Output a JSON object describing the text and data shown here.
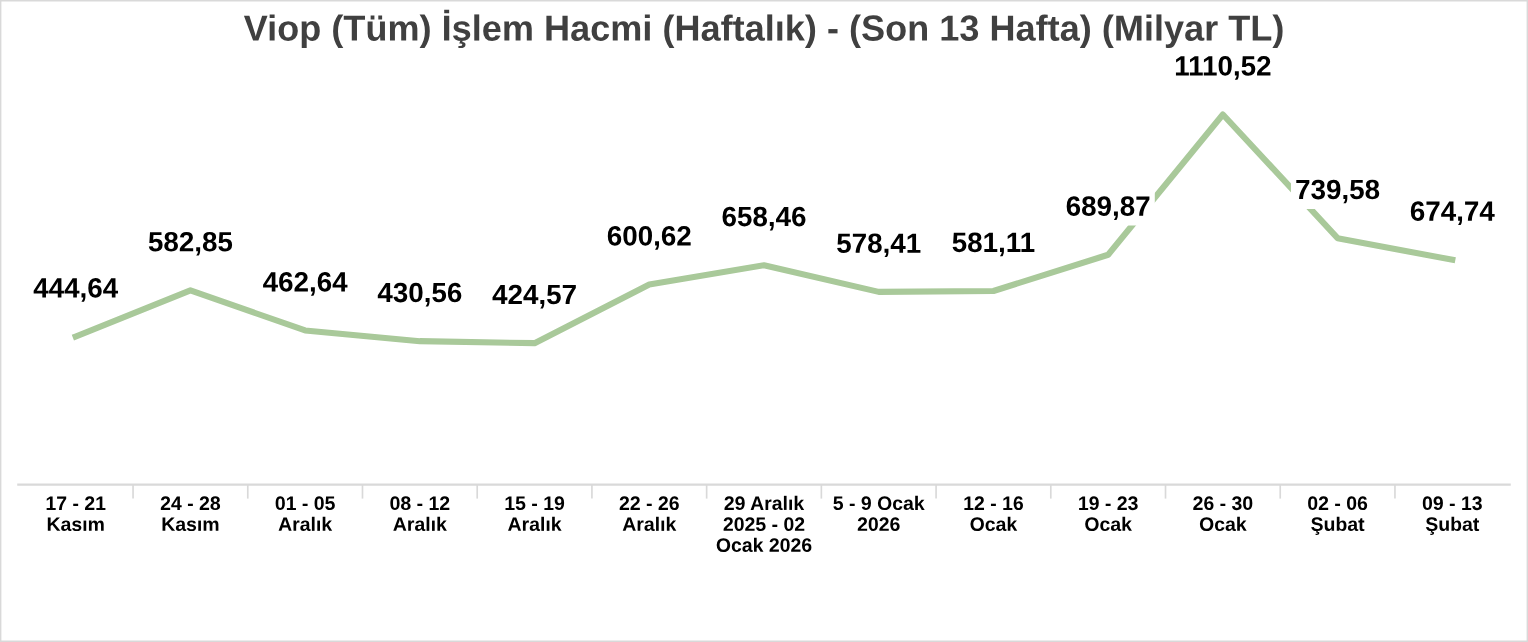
{
  "chart_data": {
    "type": "line",
    "title": "Viop (Tüm) İşlem Hacmi (Haftalık) - (Son 13 Hafta) (Milyar TL)",
    "categories": [
      "17 - 21\nKasım",
      "24 - 28\nKasım",
      "01 - 05\nAralık",
      "08 - 12\nAralık",
      "15 - 19\nAralık",
      "22 - 26\nAralık",
      "29 Aralık\n2025 - 02\nOcak 2026",
      "5 - 9 Ocak\n2026",
      "12 - 16\nOcak",
      "19 - 23\nOcak",
      "26 - 30\nOcak",
      "02 - 06\nŞubat",
      "09 - 13\nŞubat"
    ],
    "series": [
      {
        "color": "#a9c99a",
        "values": [
          444.64,
          582.85,
          462.64,
          430.56,
          424.57,
          600.62,
          658.46,
          578.41,
          581.11,
          689.87,
          1110.52,
          739.58,
          674.74
        ],
        "value_labels": [
          "444,64",
          "582,85",
          "462,64",
          "430,56",
          "424,57",
          "600,62",
          "658,46",
          "578,41",
          "581,11",
          "689,87",
          "1110,52",
          "739,58",
          "674,74"
        ]
      }
    ],
    "grid": false,
    "legend": false,
    "marker": "none",
    "line_style": "solid"
  }
}
